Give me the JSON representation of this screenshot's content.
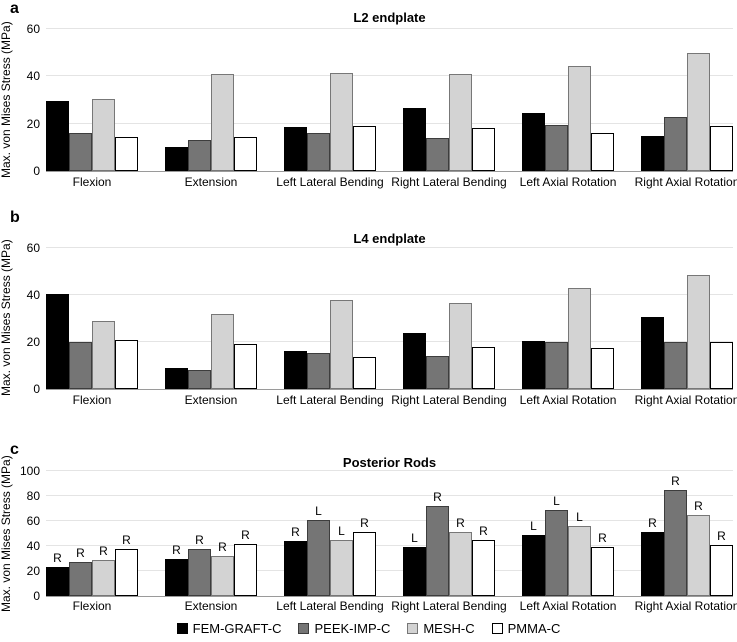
{
  "figure": {
    "panels": [
      {
        "letter": "a",
        "title": "L2 endplate"
      },
      {
        "letter": "b",
        "title": "L4 endplate"
      },
      {
        "letter": "c",
        "title": "Posterior Rods"
      }
    ],
    "legend": [
      {
        "label": "FEM-GRAFT-C",
        "color": "#000000",
        "border": "#000000"
      },
      {
        "label": "PEEK-IMP-C",
        "color": "#757575",
        "border": "#3d3d3d"
      },
      {
        "label": "MESH-C",
        "color": "#d3d3d3",
        "border": "#777777"
      },
      {
        "label": "PMMA-C",
        "color": "#ffffff",
        "border": "#000000"
      }
    ]
  },
  "chart_data": [
    {
      "type": "bar",
      "title": "L2 endplate",
      "ylabel": "Max. von Mises Stress (MPa)",
      "xlabel": "",
      "ylim": [
        0,
        60
      ],
      "yticks": [
        0,
        20,
        40,
        60
      ],
      "grid": true,
      "legend_position": "none",
      "categories": [
        "Flexion",
        "Extension",
        "Left Lateral Bending",
        "Right Lateral Bending",
        "Left Axial Rotation",
        "Right Axial Rotation"
      ],
      "series": [
        {
          "name": "FEM-GRAFT-C",
          "color": "#000000",
          "border": "#000000",
          "values": [
            29.5,
            10,
            18.5,
            26.5,
            24.5,
            15
          ]
        },
        {
          "name": "PEEK-IMP-C",
          "color": "#757575",
          "border": "#3d3d3d",
          "values": [
            16,
            13,
            16,
            14,
            19.5,
            23
          ]
        },
        {
          "name": "MESH-C",
          "color": "#d3d3d3",
          "border": "#777777",
          "values": [
            30.5,
            41,
            41.5,
            41,
            44.5,
            50
          ]
        },
        {
          "name": "PMMA-C",
          "color": "#ffffff",
          "border": "#000000",
          "values": [
            14.5,
            14.5,
            19,
            18,
            16,
            19
          ]
        }
      ]
    },
    {
      "type": "bar",
      "title": "L4 endplate",
      "ylabel": "Max. von Mises Stress (MPa)",
      "xlabel": "",
      "ylim": [
        0,
        60
      ],
      "yticks": [
        0,
        20,
        40,
        60
      ],
      "grid": true,
      "legend_position": "none",
      "categories": [
        "Flexion",
        "Extension",
        "Left Lateral Bending",
        "Right Lateral Bending",
        "Left Axial Rotation",
        "Right Axial Rotation"
      ],
      "series": [
        {
          "name": "FEM-GRAFT-C",
          "color": "#000000",
          "border": "#000000",
          "values": [
            40.5,
            9,
            16,
            24,
            20.5,
            30.5
          ]
        },
        {
          "name": "PEEK-IMP-C",
          "color": "#757575",
          "border": "#3d3d3d",
          "values": [
            20,
            8,
            15.5,
            14,
            20,
            20
          ]
        },
        {
          "name": "MESH-C",
          "color": "#d3d3d3",
          "border": "#777777",
          "values": [
            29,
            32,
            38,
            36.5,
            43,
            48.5
          ]
        },
        {
          "name": "PMMA-C",
          "color": "#ffffff",
          "border": "#000000",
          "values": [
            21,
            19,
            13.5,
            18,
            17.5,
            20
          ]
        }
      ]
    },
    {
      "type": "bar",
      "title": "Posterior Rods",
      "ylabel": "Max. von Mises Stress (MPa)",
      "xlabel": "",
      "ylim": [
        0,
        100
      ],
      "yticks": [
        0,
        20,
        40,
        60,
        80,
        100
      ],
      "grid": true,
      "legend_position": "bottom-center",
      "categories": [
        "Flexion",
        "Extension",
        "Left Lateral Bending",
        "Right Lateral Bending",
        "Left Axial Rotation",
        "Right Axial Rotation"
      ],
      "series": [
        {
          "name": "FEM-GRAFT-C",
          "color": "#000000",
          "border": "#000000",
          "values": [
            23,
            29.5,
            44,
            39,
            49,
            51
          ],
          "side_labels": [
            "R",
            "R",
            "R",
            "L",
            "L",
            "R"
          ]
        },
        {
          "name": "PEEK-IMP-C",
          "color": "#757575",
          "border": "#3d3d3d",
          "values": [
            27.5,
            37.5,
            61,
            72,
            69,
            85
          ],
          "side_labels": [
            "R",
            "R",
            "L",
            "R",
            "L",
            "R"
          ]
        },
        {
          "name": "MESH-C",
          "color": "#d3d3d3",
          "border": "#777777",
          "values": [
            28.5,
            32,
            45,
            51,
            56,
            65
          ],
          "side_labels": [
            "R",
            "R",
            "L",
            "R",
            "L",
            "R"
          ]
        },
        {
          "name": "PMMA-C",
          "color": "#ffffff",
          "border": "#000000",
          "values": [
            38,
            42,
            51,
            45,
            39,
            41
          ],
          "side_labels": [
            "R",
            "R",
            "R",
            "R",
            "R",
            "R"
          ]
        }
      ]
    }
  ]
}
